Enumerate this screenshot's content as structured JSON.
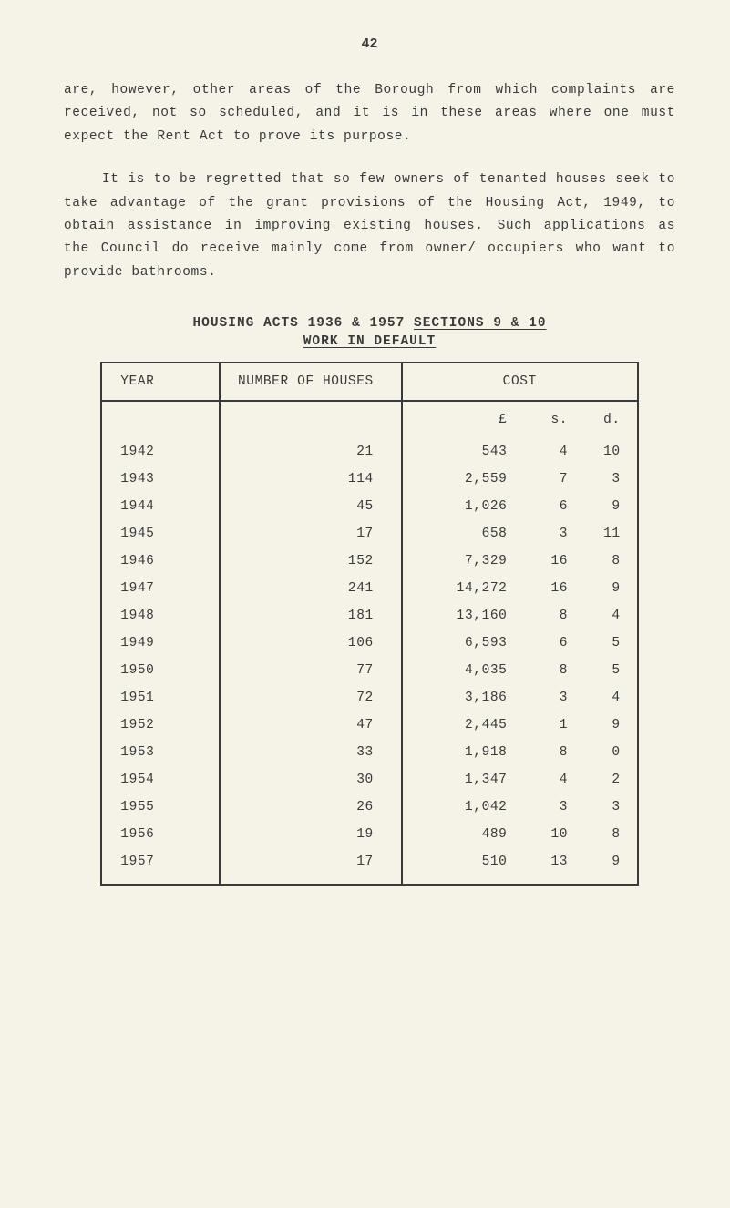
{
  "page_number": "42",
  "paragraph1": "are, however, other areas of the Borough from which complaints are received, not so scheduled, and it is in these areas where one must expect the Rent Act to prove its purpose.",
  "paragraph2": "It is to be regretted that so few owners of tenanted houses seek to take advantage of the grant provisions of the Housing Act, 1949, to obtain assistance in improving existing houses. Such applications as the Council do receive mainly come from owner/ occupiers who want to provide bathrooms.",
  "section_title_prefix": "HOUSING ACTS 1936 & 1957 ",
  "section_title_underlined": "SECTIONS 9 & 10",
  "section_subtitle": "WORK IN DEFAULT",
  "table": {
    "headers": {
      "year": "YEAR",
      "houses": "NUMBER OF HOUSES",
      "cost": "COST"
    },
    "currency_symbols": {
      "l": "£",
      "s": "s.",
      "d": "d."
    },
    "rows": [
      {
        "year": "1942",
        "houses": "21",
        "l": "543",
        "s": "4",
        "d": "10"
      },
      {
        "year": "1943",
        "houses": "114",
        "l": "2,559",
        "s": "7",
        "d": "3"
      },
      {
        "year": "1944",
        "houses": "45",
        "l": "1,026",
        "s": "6",
        "d": "9"
      },
      {
        "year": "1945",
        "houses": "17",
        "l": "658",
        "s": "3",
        "d": "11"
      },
      {
        "year": "1946",
        "houses": "152",
        "l": "7,329",
        "s": "16",
        "d": "8"
      },
      {
        "year": "1947",
        "houses": "241",
        "l": "14,272",
        "s": "16",
        "d": "9"
      },
      {
        "year": "1948",
        "houses": "181",
        "l": "13,160",
        "s": "8",
        "d": "4"
      },
      {
        "year": "1949",
        "houses": "106",
        "l": "6,593",
        "s": "6",
        "d": "5"
      },
      {
        "year": "1950",
        "houses": "77",
        "l": "4,035",
        "s": "8",
        "d": "5"
      },
      {
        "year": "1951",
        "houses": "72",
        "l": "3,186",
        "s": "3",
        "d": "4"
      },
      {
        "year": "1952",
        "houses": "47",
        "l": "2,445",
        "s": "1",
        "d": "9"
      },
      {
        "year": "1953",
        "houses": "33",
        "l": "1,918",
        "s": "8",
        "d": "0"
      },
      {
        "year": "1954",
        "houses": "30",
        "l": "1,347",
        "s": "4",
        "d": "2"
      },
      {
        "year": "1955",
        "houses": "26",
        "l": "1,042",
        "s": "3",
        "d": "3"
      },
      {
        "year": "1956",
        "houses": "19",
        "l": "489",
        "s": "10",
        "d": "8"
      },
      {
        "year": "1957",
        "houses": "17",
        "l": "510",
        "s": "13",
        "d": "9"
      }
    ]
  },
  "colors": {
    "background": "#f5f3e8",
    "text": "#3a3a3a",
    "border": "#3a3a3a"
  }
}
